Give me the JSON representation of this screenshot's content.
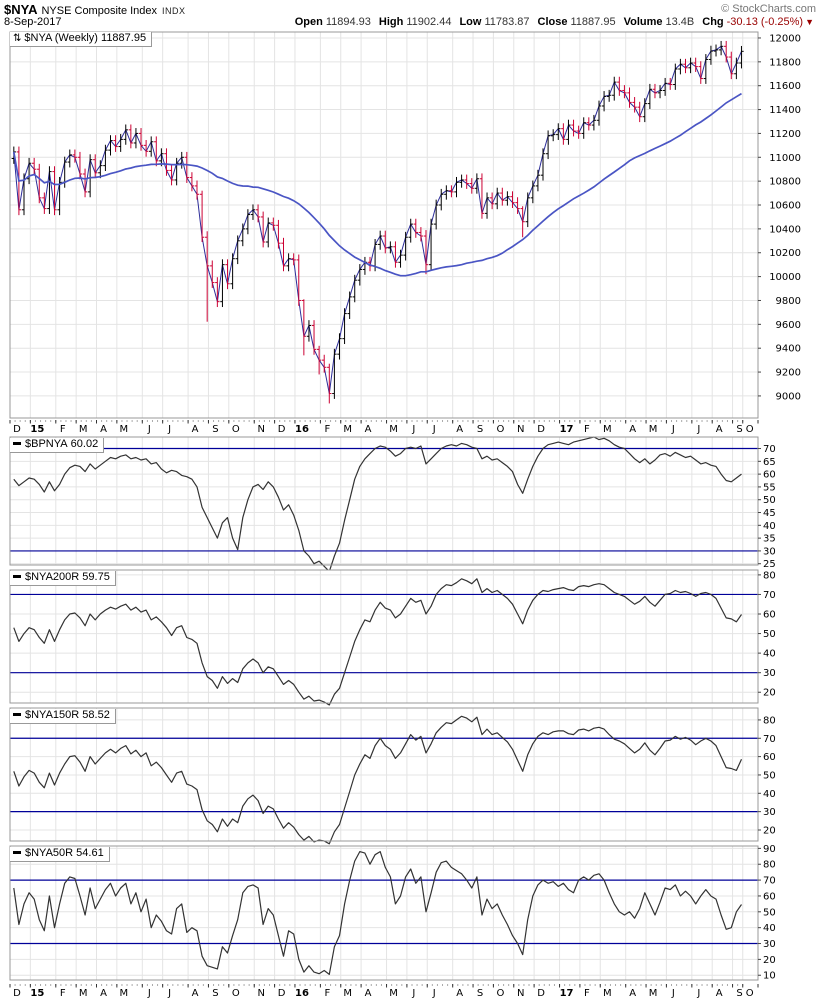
{
  "header": {
    "symbol": "$NYA",
    "name": "NYSE Composite Index",
    "exchange": "INDX",
    "copyright": "© StockCharts.com",
    "date": "8-Sep-2017",
    "quote": {
      "open_label": "Open",
      "open": "11894.93",
      "high_label": "High",
      "high": "11902.44",
      "low_label": "Low",
      "low": "11783.87",
      "close_label": "Close",
      "close": "11887.95",
      "volume_label": "Volume",
      "volume": "13.4B",
      "chg_label": "Chg",
      "chg": "-30.13 (-0.25%)",
      "chg_arrow": "▼"
    }
  },
  "colors": {
    "up": "#000000",
    "down": "#cc0033",
    "close_line": "#2c2c99",
    "ma": "#4a55c4",
    "hline": "#000099",
    "indicator": "#333333",
    "grid": "#e4e4e4",
    "border": "#999999"
  },
  "chart_data": {
    "type": "multi-panel-stock-chart",
    "timeframe": "Weekly, Dec 2014 - Sep 2017",
    "price": {
      "icon": "⇅",
      "label": "$NYA (Weekly)",
      "value": "11887.95",
      "yticks": [
        12000,
        11800,
        11600,
        11400,
        11200,
        11000,
        10800,
        10600,
        10400,
        10200,
        10000,
        9800,
        9600,
        9400,
        9200,
        9000
      ],
      "ymax": 12050,
      "ymin": 8815,
      "first_open": 10990,
      "default_wick": 45,
      "ma_period": 40,
      "wick_overrides": {
        "37": [
          10720,
          10290
        ],
        "38": [
          10380,
          9622
        ],
        "57": [
          9810,
          9340
        ],
        "60": [
          9420,
          9180
        ],
        "62": [
          9270,
          8937
        ],
        "81": [
          10390,
          10020
        ],
        "100": [
          10590,
          10330
        ]
      },
      "closes": [
        11045,
        10560,
        10820,
        10950,
        10900,
        10660,
        10570,
        10880,
        10560,
        10790,
        10960,
        11020,
        11000,
        10860,
        10710,
        10980,
        10870,
        10930,
        11060,
        11140,
        11090,
        11150,
        11230,
        11120,
        11200,
        11100,
        11050,
        11130,
        10970,
        11030,
        10890,
        10810,
        10950,
        11000,
        10830,
        10760,
        10690,
        10330,
        10090,
        9950,
        9790,
        10100,
        9940,
        10150,
        10300,
        10400,
        10520,
        10560,
        10500,
        10290,
        10450,
        10430,
        10280,
        10090,
        10150,
        10140,
        9800,
        9500,
        9590,
        9390,
        9300,
        9240,
        9020,
        9350,
        9480,
        9690,
        9830,
        9970,
        10060,
        10120,
        10090,
        10270,
        10340,
        10240,
        10250,
        10120,
        10180,
        10330,
        10440,
        10370,
        10340,
        10100,
        10440,
        10600,
        10690,
        10720,
        10710,
        10790,
        10810,
        10780,
        10740,
        10820,
        10530,
        10660,
        10610,
        10700,
        10640,
        10670,
        10620,
        10570,
        10460,
        10660,
        10760,
        10850,
        11030,
        11180,
        11190,
        11240,
        11150,
        11270,
        11220,
        11200,
        11290,
        11270,
        11310,
        11430,
        11510,
        11520,
        11630,
        11560,
        11540,
        11460,
        11420,
        11340,
        11450,
        11570,
        11540,
        11560,
        11620,
        11610,
        11740,
        11780,
        11750,
        11790,
        11760,
        11660,
        11820,
        11890,
        11900,
        11930,
        11840,
        11700,
        11790,
        11887.95
      ]
    },
    "indicators": [
      {
        "name": "$BPNYA",
        "value": "60.02",
        "yticks": [
          70,
          65,
          60,
          55,
          50,
          45,
          40,
          35,
          30,
          25
        ],
        "ymax": 74.5,
        "ymin": 24.5,
        "hlines": [
          70,
          30
        ],
        "values": [
          58,
          55.5,
          57,
          58.5,
          58,
          56,
          53,
          57,
          53.5,
          56,
          60,
          62.5,
          63.5,
          63,
          61,
          64,
          62,
          63.5,
          65,
          66.5,
          66,
          67,
          67.5,
          66,
          66.5,
          65.5,
          66,
          64,
          64.5,
          62,
          60.5,
          61.5,
          61,
          59.5,
          59,
          58,
          55,
          47,
          43,
          39,
          35,
          41,
          43,
          35,
          30.5,
          43,
          50,
          55,
          56,
          54,
          57,
          55,
          51,
          46,
          48,
          44,
          38,
          30,
          28,
          25,
          26,
          24,
          22,
          28,
          33,
          42,
          50,
          58,
          63,
          66,
          68,
          70,
          71,
          70.5,
          69,
          67,
          68,
          70,
          70.5,
          70,
          71,
          64,
          66,
          68,
          70,
          71,
          71.5,
          71,
          72,
          71.5,
          70.5,
          70,
          66,
          67,
          65.5,
          66,
          64.5,
          63,
          61,
          56,
          52.5,
          58,
          63,
          67,
          70,
          71.5,
          72,
          72.5,
          72,
          71.5,
          72.5,
          73,
          73.5,
          74,
          74.5,
          73.5,
          74,
          73,
          71.5,
          70.5,
          70,
          68,
          66,
          64.5,
          66,
          64,
          65.5,
          67.5,
          68,
          67,
          68.5,
          67.5,
          66.5,
          67,
          65.5,
          64,
          64.5,
          63.5,
          63,
          60,
          57.5,
          57,
          58.5,
          60.02
        ]
      },
      {
        "name": "$NYA200R",
        "value": "59.75",
        "yticks": [
          80,
          70,
          60,
          50,
          40,
          30,
          20
        ],
        "ymax": 82.5,
        "ymin": 14.5,
        "hlines": [
          70,
          30
        ],
        "values": [
          53,
          46,
          50,
          53,
          52,
          48,
          45,
          52,
          46,
          52,
          57,
          60,
          60.5,
          58,
          54,
          60,
          57,
          60,
          62,
          63.5,
          62.5,
          64,
          65,
          62,
          63.5,
          61,
          62,
          57,
          58.5,
          56,
          53,
          49,
          53,
          54,
          48,
          47,
          45,
          35,
          28,
          26,
          22,
          28,
          24.5,
          27,
          25,
          32,
          35,
          37,
          35,
          30,
          33,
          32,
          28,
          24,
          26,
          24,
          20,
          16.5,
          18,
          15.5,
          16,
          15,
          13.5,
          19,
          22,
          30,
          38,
          46,
          52,
          57,
          56,
          62,
          66,
          63,
          62,
          58,
          60,
          64,
          68,
          66,
          67,
          60,
          64,
          70,
          73,
          75,
          74.5,
          76,
          78,
          77,
          75.5,
          78,
          71,
          73,
          71,
          72,
          70,
          68,
          65,
          60,
          55,
          62,
          67,
          70,
          72,
          71.5,
          72.5,
          73,
          73.5,
          72.5,
          72,
          74,
          74.5,
          74,
          75,
          75.5,
          75,
          73,
          71,
          70,
          69,
          67,
          65,
          66.5,
          69,
          66,
          64,
          67,
          70,
          70.5,
          72,
          71,
          71.5,
          70.5,
          69,
          70.5,
          71,
          70,
          68,
          63,
          58,
          57.5,
          56,
          59.75
        ]
      },
      {
        "name": "$NYA150R",
        "value": "58.52",
        "yticks": [
          80,
          70,
          60,
          50,
          40,
          30,
          20
        ],
        "ymax": 86.5,
        "ymin": 14,
        "hlines": [
          70,
          30
        ],
        "values": [
          52,
          44,
          49,
          52.5,
          51,
          46,
          43,
          51,
          44.5,
          51,
          56,
          60,
          60.5,
          57,
          52,
          60,
          56,
          59,
          62,
          64,
          62,
          64.5,
          66,
          61.5,
          63.5,
          60,
          62,
          55,
          57,
          54,
          50,
          46,
          51,
          52,
          45,
          44,
          42,
          31,
          25,
          23,
          19,
          26,
          22,
          26,
          24,
          33,
          37,
          39,
          36,
          29,
          33,
          31.5,
          26,
          21,
          24,
          21.5,
          17.5,
          14.5,
          16.5,
          13.5,
          14.5,
          14,
          12.5,
          19,
          23,
          32,
          41,
          50,
          56,
          61,
          59,
          66,
          70,
          66,
          64,
          59,
          62,
          67,
          72,
          69,
          71,
          62,
          67,
          73,
          76,
          78.5,
          78,
          80,
          82,
          81,
          79,
          81.5,
          72,
          75,
          72,
          73,
          70.5,
          68,
          64,
          58,
          52,
          61,
          67,
          71,
          73,
          72,
          73.5,
          74,
          74,
          72.5,
          72,
          74.5,
          75,
          74,
          75.5,
          76,
          75,
          72,
          69.5,
          68.5,
          67,
          64.5,
          62,
          64,
          67.5,
          63.5,
          61,
          64.5,
          68.5,
          69,
          71,
          69.5,
          70.5,
          69,
          66.5,
          68.5,
          70,
          68.5,
          66,
          60,
          54,
          53.5,
          52.5,
          58.52
        ]
      },
      {
        "name": "$NYA50R",
        "value": "54.61",
        "yticks": [
          90,
          80,
          70,
          60,
          50,
          40,
          30,
          20,
          10
        ],
        "ymax": 91.5,
        "ymin": 7,
        "hlines": [
          70,
          30
        ],
        "values": [
          65,
          42,
          55,
          62,
          58,
          45,
          38,
          60,
          40,
          55,
          68,
          72,
          71,
          60,
          48,
          65,
          52,
          58,
          64,
          68,
          60,
          65,
          68,
          55,
          62,
          50,
          58,
          40,
          48,
          44,
          38,
          36,
          52,
          55,
          37,
          40,
          38,
          22,
          16,
          15,
          14,
          28,
          24,
          35,
          45,
          62,
          66,
          67,
          65,
          42,
          52,
          48,
          35,
          22,
          38,
          36,
          20,
          12,
          16,
          12,
          11,
          13,
          10.5,
          28,
          35,
          55,
          70,
          82,
          88,
          87,
          80,
          86,
          88,
          78,
          72,
          55,
          60,
          72,
          77,
          68,
          72,
          50,
          62,
          75,
          81,
          82,
          78,
          76,
          74,
          70,
          65,
          72,
          48,
          58,
          52,
          55,
          48,
          42,
          35,
          30,
          23,
          45,
          60,
          67,
          70,
          68,
          69,
          66,
          68,
          64,
          62,
          70,
          72,
          70,
          73,
          74,
          70,
          62,
          55,
          50,
          48,
          50,
          46,
          52,
          62,
          55,
          48,
          56,
          65,
          64,
          67,
          60,
          63,
          60,
          55,
          60,
          64,
          60,
          58,
          48,
          39,
          40,
          50,
          54.61
        ]
      }
    ],
    "xaxis": {
      "labels": [
        "D",
        "15",
        "F",
        "M",
        "A",
        "M",
        "J",
        "J",
        "A",
        "S",
        "O",
        "N",
        "D",
        "16",
        "F",
        "M",
        "A",
        "M",
        "J",
        "J",
        "A",
        "S",
        "O",
        "N",
        "D",
        "17",
        "F",
        "M",
        "A",
        "M",
        "J",
        "J",
        "A",
        "S",
        "O"
      ],
      "bold_indices": [
        1,
        13,
        25
      ],
      "month_weeks": [
        4,
        5,
        4,
        4,
        4,
        5,
        4,
        5,
        4,
        4,
        5,
        4,
        4,
        5,
        4,
        4,
        5,
        4,
        4,
        5,
        4,
        4,
        4,
        4,
        5,
        4,
        4,
        5,
        4,
        4,
        5,
        4,
        4,
        2,
        0
      ]
    }
  }
}
